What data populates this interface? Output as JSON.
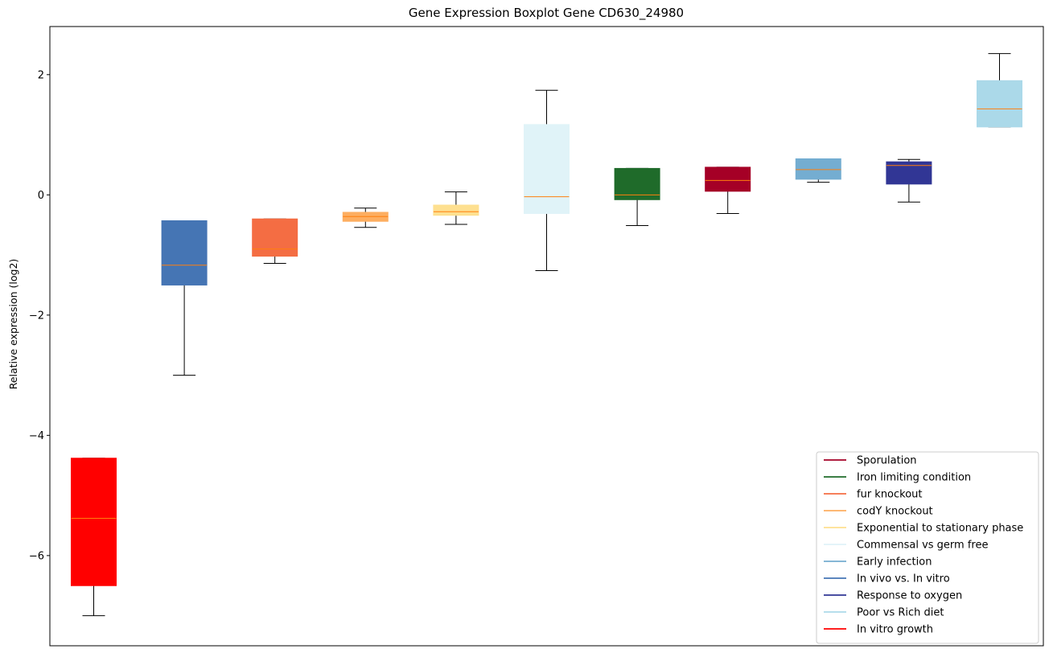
{
  "chart_data": {
    "type": "box",
    "title": "Gene Expression Boxplot Gene CD630_24980",
    "ylabel": "Relative expression (log2)",
    "ylim": [
      -7.5,
      2.8
    ],
    "yticks": [
      2,
      0,
      -2,
      -4,
      -6
    ],
    "ytick_labels": [
      "2",
      "0",
      "−2",
      "−4",
      "−6"
    ],
    "grid": false,
    "legend_position": "lower-right",
    "median_color": "#ff7f0e",
    "boxes": [
      {
        "name": "In vitro growth",
        "color": "#ff0000",
        "whislo": -7.0,
        "q1": -6.5,
        "med": -5.38,
        "q3": -4.38,
        "whishi": -4.38
      },
      {
        "name": "In vivo vs. In vitro",
        "color": "#4575b4",
        "whislo": -3.0,
        "q1": -1.5,
        "med": -1.17,
        "q3": -0.43,
        "whishi": -0.43
      },
      {
        "name": "fur knockout",
        "color": "#f46d43",
        "whislo": -1.14,
        "q1": -1.02,
        "med": -0.9,
        "q3": -0.4,
        "whishi": -0.4
      },
      {
        "name": "codY knockout",
        "color": "#fdae61",
        "whislo": -0.54,
        "q1": -0.44,
        "med": -0.36,
        "q3": -0.29,
        "whishi": -0.22
      },
      {
        "name": "Exponential to stationary phase",
        "color": "#fee090",
        "whislo": -0.49,
        "q1": -0.34,
        "med": -0.28,
        "q3": -0.17,
        "whishi": 0.05
      },
      {
        "name": "Commensal vs germ free",
        "color": "#e0f3f8",
        "whislo": -1.26,
        "q1": -0.31,
        "med": -0.03,
        "q3": 1.17,
        "whishi": 1.74
      },
      {
        "name": "Iron limiting condition",
        "color": "#1f6b2a",
        "whislo": -0.51,
        "q1": -0.08,
        "med": 0.0,
        "q3": 0.44,
        "whishi": 0.44
      },
      {
        "name": "Sporulation",
        "color": "#a50026",
        "whislo": -0.31,
        "q1": 0.06,
        "med": 0.24,
        "q3": 0.46,
        "whishi": 0.46
      },
      {
        "name": "Early infection",
        "color": "#74add1",
        "whislo": 0.21,
        "q1": 0.26,
        "med": 0.42,
        "q3": 0.6,
        "whishi": 0.6
      },
      {
        "name": "Response to oxygen",
        "color": "#313695",
        "whislo": -0.12,
        "q1": 0.18,
        "med": 0.49,
        "q3": 0.55,
        "whishi": 0.59
      },
      {
        "name": "Poor vs Rich diet",
        "color": "#abd9e9",
        "whislo": 1.13,
        "q1": 1.13,
        "med": 1.43,
        "q3": 1.9,
        "whishi": 2.35
      }
    ],
    "legend": [
      {
        "label": "Sporulation",
        "color": "#a50026"
      },
      {
        "label": "Iron limiting condition",
        "color": "#1f6b2a"
      },
      {
        "label": "fur knockout",
        "color": "#f46d43"
      },
      {
        "label": "codY knockout",
        "color": "#fdae61"
      },
      {
        "label": "Exponential to stationary phase",
        "color": "#fee090"
      },
      {
        "label": "Commensal vs germ free",
        "color": "#e0f3f8"
      },
      {
        "label": "Early infection",
        "color": "#74add1"
      },
      {
        "label": "In vivo vs. In vitro",
        "color": "#4575b4"
      },
      {
        "label": "Response to oxygen",
        "color": "#313695"
      },
      {
        "label": "Poor vs Rich diet",
        "color": "#abd9e9"
      },
      {
        "label": "In vitro growth",
        "color": "#ff0000"
      }
    ]
  }
}
